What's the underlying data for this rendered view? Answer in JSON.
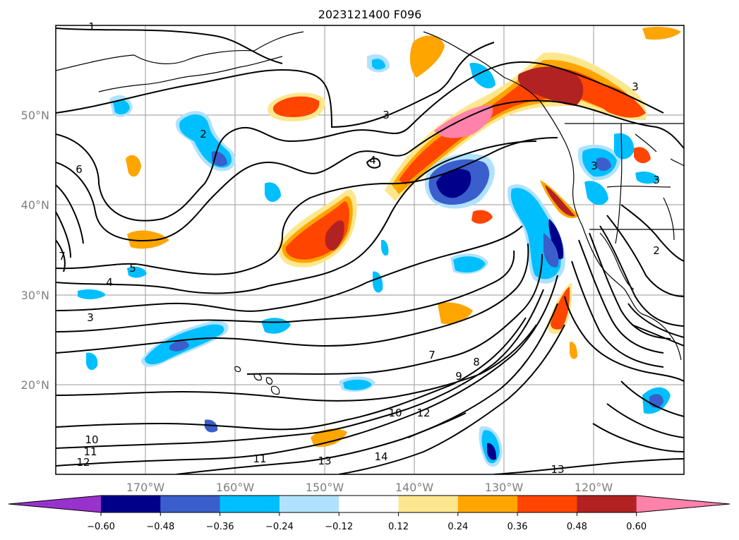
{
  "title": "2023121400 F096",
  "lat_labels": [
    "50°N",
    "40°N",
    "30°N",
    "20°N"
  ],
  "lon_labels": [
    "170°W",
    "160°W",
    "150°W",
    "140°W",
    "130°W",
    "120°W"
  ],
  "colorbar": {
    "ticks": [
      "−0.60",
      "−0.48",
      "−0.36",
      "−0.24",
      "−0.12",
      "0.12",
      "0.24",
      "0.36",
      "0.48",
      "0.60"
    ],
    "colors": [
      "#9932cc",
      "#00008b",
      "#3a5fcd",
      "#00bfff",
      "#b0e2ff",
      "#ffffff",
      "#fde78e",
      "#ffa500",
      "#ff4500",
      "#b22222",
      "#ff82ab"
    ]
  },
  "contour_labels": [
    "1",
    "2",
    "2",
    "3",
    "3",
    "3",
    "3",
    "3",
    "4",
    "4",
    "5",
    "6",
    "7",
    "7",
    "8",
    "9",
    "10",
    "10",
    "11",
    "11",
    "12",
    "12",
    "13",
    "13",
    "14"
  ]
}
